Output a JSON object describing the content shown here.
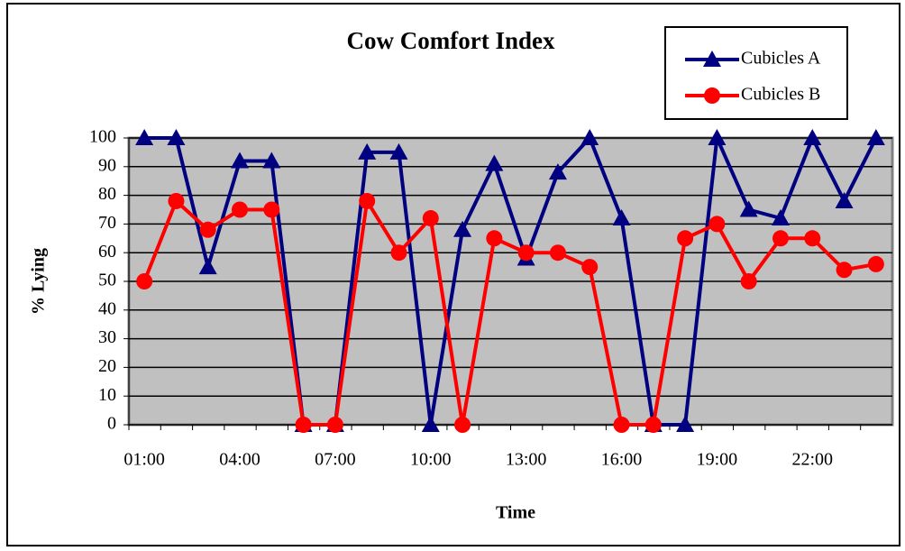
{
  "chart_data": {
    "type": "line",
    "title": "Cow Comfort Index",
    "xlabel": "Time",
    "ylabel": "% Lying",
    "categories": [
      "01:00",
      null,
      null,
      "04:00",
      null,
      null,
      "07:00",
      null,
      null,
      "10:00",
      null,
      null,
      "13:00",
      null,
      null,
      "16:00",
      null,
      null,
      "19:00",
      null,
      null,
      "22:00",
      null,
      null
    ],
    "series": [
      {
        "name": "Cubicles A",
        "color": "#000080",
        "marker": "triangle",
        "values": [
          100,
          100,
          55,
          92,
          92,
          0,
          0,
          95,
          95,
          0,
          68,
          91,
          58,
          88,
          100,
          72,
          0,
          0,
          100,
          75,
          72,
          100,
          78,
          100
        ]
      },
      {
        "name": "Cubicles B",
        "color": "#ff0000",
        "marker": "circle",
        "values": [
          50,
          78,
          68,
          75,
          75,
          0,
          0,
          78,
          60,
          72,
          0,
          65,
          60,
          60,
          55,
          0,
          0,
          65,
          70,
          50,
          65,
          65,
          54,
          56
        ]
      }
    ],
    "ylim": [
      0,
      100
    ],
    "yticks": [
      0,
      10,
      20,
      30,
      40,
      50,
      60,
      70,
      80,
      90,
      100
    ],
    "grid": true,
    "legend": "top-right"
  }
}
